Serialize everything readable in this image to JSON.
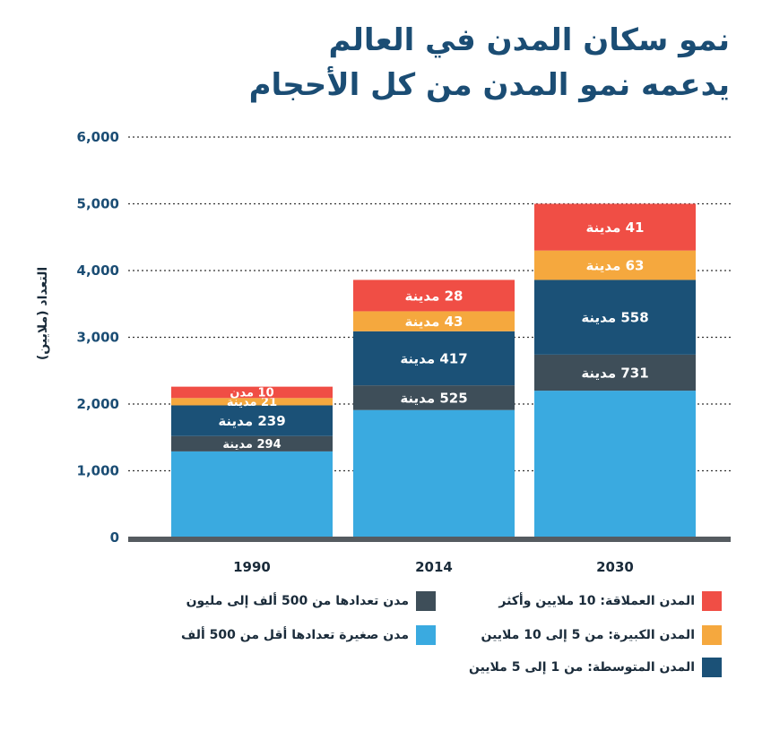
{
  "title_line1": "نمو سكان المدن في العالم",
  "title_line2": "يدعمه نمو المدن من كل الأحجام",
  "chart_data": {
    "type": "bar",
    "stacked": true,
    "ylabel": "التعداد (ملايين)",
    "ylim": [
      0,
      6000
    ],
    "yticks": [
      "0",
      "1,000",
      "2,000",
      "3,000",
      "4,000",
      "5,000",
      "6,000"
    ],
    "categories": [
      "1990",
      "2014",
      "2030"
    ],
    "grid": "dotted horizontal",
    "series": [
      {
        "name": "مدن صغيرة تعدادها أقل من 500 ألف",
        "color": "#3aaae0",
        "values": [
          1290,
          1910,
          2200
        ],
        "labels": [
          "",
          "",
          ""
        ]
      },
      {
        "name": "مدن تعدادها من 500 ألف إلى مليون",
        "color": "#3e4e59",
        "values": [
          230,
          370,
          540
        ],
        "labels": [
          "294 مدينة",
          "525 مدينة",
          "731 مدينة"
        ]
      },
      {
        "name": "المدن المتوسطة: من 1 إلى 5 ملايين",
        "color": "#1b5177",
        "values": [
          460,
          810,
          1120
        ],
        "labels": [
          "239 مدينة",
          "417 مدينة",
          "558 مدينة"
        ]
      },
      {
        "name": "المدن الكبيرة: من 5 إلى 10 ملايين",
        "color": "#f5a83e",
        "values": [
          110,
          300,
          440
        ],
        "labels": [
          "21 مدينة",
          "43 مدينة",
          "63 مدينة"
        ]
      },
      {
        "name": "المدن العملاقة: 10 ملايين وأكثر",
        "color": "#f04e45",
        "values": [
          170,
          470,
          700
        ],
        "labels": [
          "10 مدن",
          "28 مدينة",
          "41 مدينة"
        ]
      }
    ]
  }
}
